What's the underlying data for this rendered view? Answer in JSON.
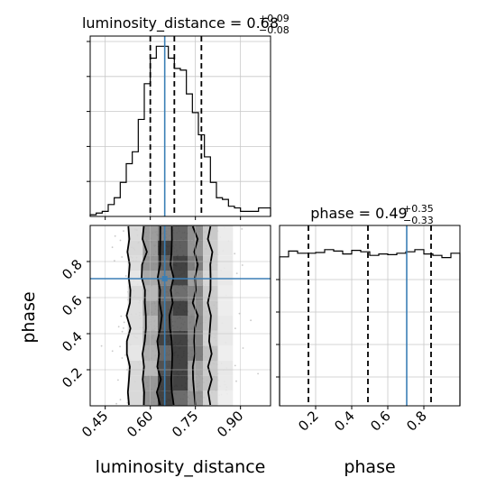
{
  "chart_data": [
    {
      "type": "histogram",
      "panel": "luminosity_distance-marginal",
      "title": "luminosity_distance",
      "median": "0.68",
      "err_plus": "+0.09",
      "err_minus": "−0.08",
      "bin_edges": [
        0.4,
        0.42,
        0.44,
        0.46,
        0.48,
        0.5,
        0.52,
        0.54,
        0.56,
        0.58,
        0.6,
        0.62,
        0.64,
        0.66,
        0.68,
        0.7,
        0.72,
        0.74,
        0.76,
        0.78,
        0.8,
        0.82,
        0.84,
        0.86,
        0.88,
        0.9,
        0.92,
        0.94,
        0.96,
        0.98,
        1.0
      ],
      "counts": [
        0.01,
        0.02,
        0.03,
        0.07,
        0.11,
        0.2,
        0.31,
        0.38,
        0.57,
        0.78,
        0.93,
        1.0,
        1.0,
        0.93,
        0.87,
        0.86,
        0.72,
        0.61,
        0.48,
        0.35,
        0.2,
        0.11,
        0.1,
        0.06,
        0.05,
        0.03,
        0.03,
        0.03,
        0.05,
        0.05
      ],
      "quantiles": [
        0.6,
        0.68,
        0.77
      ],
      "truth": 0.648,
      "xlim": [
        0.4,
        1.0
      ]
    },
    {
      "type": "heatmap",
      "panel": "luminosity_distance-vs-phase",
      "xlabel": "luminosity_distance",
      "ylabel": "phase",
      "xlim": [
        0.4,
        1.0
      ],
      "ylim": [
        0.0,
        1.0
      ],
      "xticks": [
        "0.45",
        "0.60",
        "0.75",
        "0.90"
      ],
      "xtick_values": [
        0.45,
        0.6,
        0.75,
        0.9
      ],
      "yticks": [
        "0.2",
        "0.4",
        "0.6",
        "0.8"
      ],
      "ytick_values": [
        0.2,
        0.4,
        0.6,
        0.8
      ],
      "truth": [
        0.648,
        0.705
      ],
      "column_density_centers": [
        0.55,
        0.6,
        0.65,
        0.7,
        0.75,
        0.8,
        0.85
      ],
      "column_density": [
        0.15,
        0.45,
        0.85,
        0.95,
        0.55,
        0.25,
        0.08
      ],
      "contour_x_bounds": [
        [
          0.63,
          0.67
        ],
        [
          0.58,
          0.75
        ],
        [
          0.53,
          0.8
        ]
      ]
    },
    {
      "type": "histogram",
      "panel": "phase-marginal",
      "title": "phase",
      "median": "0.49",
      "err_plus": "+0.35",
      "err_minus": "−0.33",
      "xlabel": "phase",
      "bin_edges": [
        0.0,
        0.05,
        0.1,
        0.15,
        0.2,
        0.25,
        0.3,
        0.35,
        0.4,
        0.45,
        0.5,
        0.55,
        0.6,
        0.65,
        0.7,
        0.75,
        0.8,
        0.85,
        0.9,
        0.95,
        1.0
      ],
      "counts": [
        0.94,
        1.02,
        0.99,
        0.99,
        1.0,
        1.04,
        1.02,
        0.98,
        1.03,
        1.01,
        0.96,
        0.98,
        0.97,
        0.99,
        1.01,
        1.04,
        0.98,
        0.96,
        0.93,
        0.99
      ],
      "quantiles": [
        0.16,
        0.49,
        0.84
      ],
      "truth": 0.705,
      "xlim": [
        0.0,
        1.0
      ],
      "xticks": [
        "0.2",
        "0.4",
        "0.6",
        "0.8"
      ],
      "xtick_values": [
        0.2,
        0.4,
        0.6,
        0.8
      ]
    }
  ]
}
